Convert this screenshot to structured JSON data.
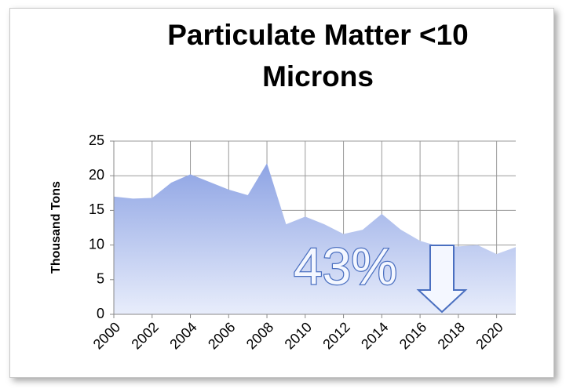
{
  "chart_data": {
    "type": "area",
    "title": "Particulate Matter <10 Microns",
    "ylabel": "Thousand Tons",
    "x": [
      2000,
      2001,
      2002,
      2003,
      2004,
      2005,
      2006,
      2007,
      2008,
      2009,
      2010,
      2011,
      2012,
      2013,
      2014,
      2015,
      2016,
      2017,
      2018,
      2019,
      2020,
      2021
    ],
    "values": [
      17.0,
      16.7,
      16.8,
      19.0,
      20.2,
      19.1,
      18.0,
      17.2,
      21.8,
      13.0,
      14.1,
      13.0,
      11.6,
      12.2,
      14.5,
      12.2,
      10.6,
      9.8,
      9.8,
      10.0,
      8.7,
      9.7
    ],
    "color": "#8ea4e4",
    "xlim": [
      2000,
      2021
    ],
    "xticks": [
      2000,
      2002,
      2004,
      2006,
      2008,
      2010,
      2012,
      2014,
      2016,
      2018,
      2020
    ],
    "ylim": [
      0,
      25
    ],
    "yticks": [
      0,
      5,
      10,
      15,
      20,
      25
    ],
    "grid": true,
    "annotation": "43%"
  }
}
